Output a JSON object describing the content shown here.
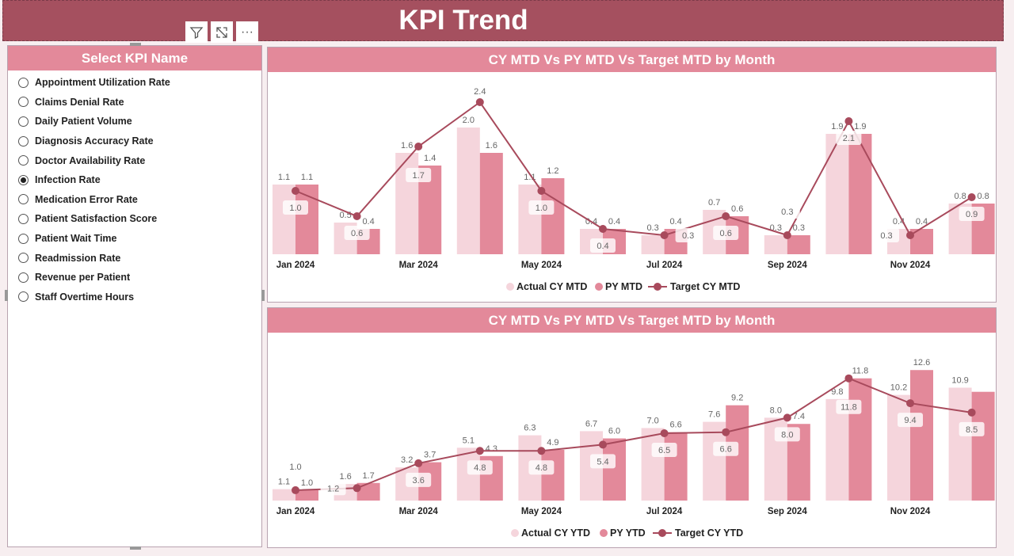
{
  "header": {
    "title": "KPI Trend"
  },
  "toolbar": {
    "icons": [
      "filter-icon",
      "focus-mode-icon",
      "more-options-icon"
    ],
    "more": "···"
  },
  "slicer": {
    "title": "Select KPI Name",
    "selected": "Infection Rate",
    "items": [
      "Appointment Utilization Rate",
      "Claims Denial Rate",
      "Daily Patient Volume",
      "Diagnosis Accuracy Rate",
      "Doctor Availability Rate",
      "Infection Rate",
      "Medication Error Rate",
      "Patient Satisfaction Score",
      "Patient Wait Time",
      "Readmission Rate",
      "Revenue per Patient",
      "Staff Overtime Hours"
    ]
  },
  "colors": {
    "header": "#a5505f",
    "accent": "#e3899a",
    "actual": "#f5d5dc",
    "py": "#e3899a",
    "target": "#a84a5c"
  },
  "chart_data": [
    {
      "type": "bar",
      "title": "CY MTD Vs PY MTD Vs Target MTD by Month",
      "categories": [
        "Jan 2024",
        "Feb 2024",
        "Mar 2024",
        "Apr 2024",
        "May 2024",
        "Jun 2024",
        "Jul 2024",
        "Aug 2024",
        "Sep 2024",
        "Oct 2024",
        "Nov 2024",
        "Dec 2024"
      ],
      "tick_labels": [
        "Jan 2024",
        "",
        "Mar 2024",
        "",
        "May 2024",
        "",
        "Jul 2024",
        "",
        "Sep 2024",
        "",
        "Nov 2024",
        ""
      ],
      "series": [
        {
          "name": "Actual CY MTD",
          "type": "bar",
          "values": [
            1.1,
            0.5,
            1.6,
            2.0,
            1.1,
            0.4,
            0.3,
            0.7,
            0.3,
            1.9,
            0.4,
            0.8
          ]
        },
        {
          "name": "PY MTD",
          "type": "bar",
          "values": [
            1.1,
            0.4,
            1.4,
            1.6,
            1.2,
            0.4,
            0.4,
            0.6,
            0.3,
            1.9,
            0.4,
            0.8
          ]
        },
        {
          "name": "Target CY MTD",
          "type": "line",
          "values": [
            1.0,
            0.6,
            1.7,
            2.4,
            1.0,
            0.4,
            0.3,
            0.6,
            0.3,
            2.1,
            0.3,
            0.9
          ]
        }
      ],
      "ylim": [
        0,
        2.5
      ],
      "legend": "bottom-center",
      "grid": false
    },
    {
      "type": "bar",
      "title": "CY MTD Vs PY MTD Vs Target MTD by Month",
      "categories": [
        "Jan 2024",
        "Feb 2024",
        "Mar 2024",
        "Apr 2024",
        "May 2024",
        "Jun 2024",
        "Jul 2024",
        "Aug 2024",
        "Sep 2024",
        "Oct 2024",
        "Nov 2024",
        "Dec 2024"
      ],
      "tick_labels": [
        "Jan 2024",
        "",
        "Mar 2024",
        "",
        "May 2024",
        "",
        "Jul 2024",
        "",
        "Sep 2024",
        "",
        "Nov 2024",
        ""
      ],
      "series": [
        {
          "name": "Actual CY YTD",
          "type": "bar",
          "values": [
            1.1,
            1.6,
            3.2,
            5.1,
            6.3,
            6.7,
            7.0,
            7.6,
            8.0,
            9.8,
            10.2,
            10.9
          ]
        },
        {
          "name": "PY YTD",
          "type": "bar",
          "values": [
            1.0,
            1.7,
            3.7,
            4.3,
            4.9,
            6.0,
            6.6,
            9.2,
            7.4,
            11.8,
            12.6,
            10.5
          ],
          "unlabeled": [
            11
          ]
        },
        {
          "name": "Target CY YTD",
          "type": "line",
          "values": [
            1.0,
            1.2,
            3.6,
            4.8,
            4.8,
            5.4,
            6.5,
            6.6,
            8.0,
            11.8,
            9.4,
            8.5
          ]
        }
      ],
      "ylim": [
        0,
        13
      ],
      "legend": "bottom-center",
      "grid": false
    }
  ]
}
